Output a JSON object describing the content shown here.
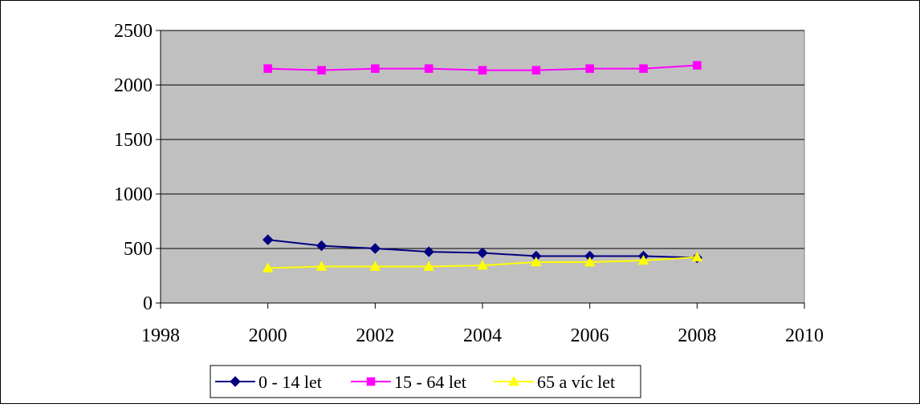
{
  "chart_data": {
    "type": "line",
    "title": "",
    "xlabel": "",
    "ylabel": "",
    "xlim": [
      1998,
      2010
    ],
    "ylim": [
      0,
      2500
    ],
    "x_ticks": [
      "1998",
      "2000",
      "2002",
      "2004",
      "2006",
      "2008",
      "2010"
    ],
    "y_ticks": [
      "0",
      "500",
      "1000",
      "1500",
      "2000",
      "2500"
    ],
    "grid": "horizontal",
    "plot_background": "#c0c0c0",
    "legend_position": "bottom",
    "x": [
      2000,
      2001,
      2002,
      2003,
      2004,
      2005,
      2006,
      2007,
      2008
    ],
    "series": [
      {
        "name": "0 - 14 let",
        "color": "#000080",
        "marker": "diamond",
        "values": [
          580,
          525,
          500,
          470,
          460,
          430,
          430,
          430,
          415
        ]
      },
      {
        "name": "15 - 64 let",
        "color": "#ff00ff",
        "marker": "square",
        "values": [
          2150,
          2135,
          2150,
          2150,
          2135,
          2135,
          2150,
          2150,
          2180
        ]
      },
      {
        "name": "65 a víc let",
        "color": "#ffff00",
        "marker": "triangle",
        "values": [
          320,
          335,
          335,
          335,
          345,
          375,
          375,
          390,
          420
        ]
      }
    ]
  }
}
